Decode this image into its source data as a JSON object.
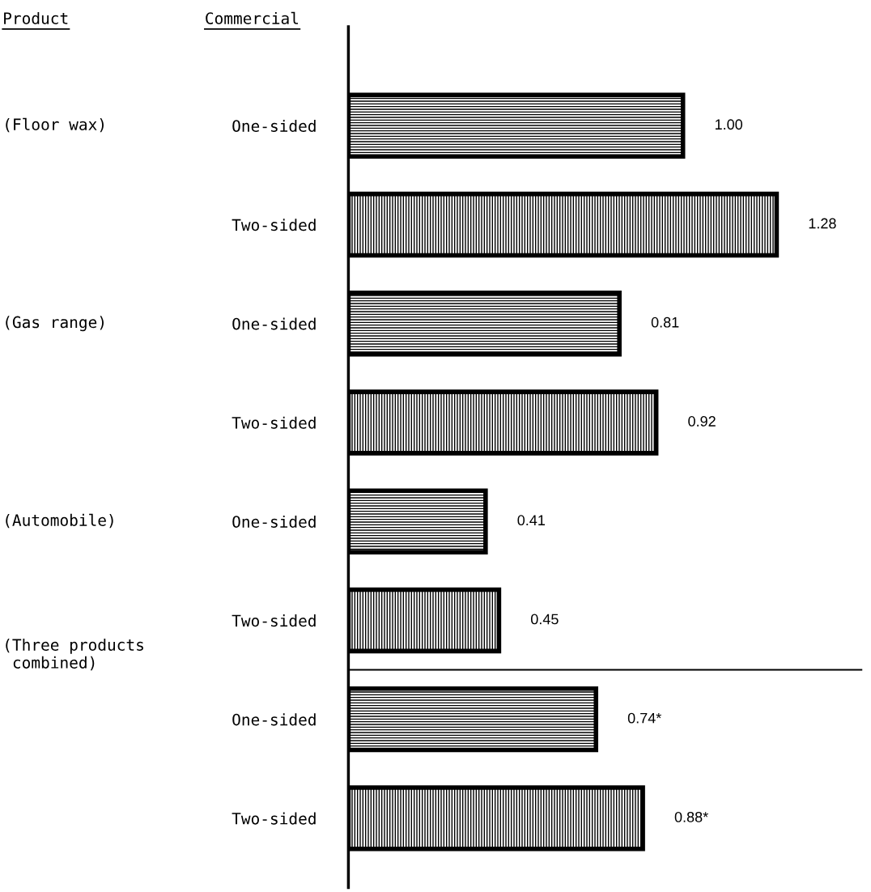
{
  "chart_data": {
    "type": "bar",
    "orientation": "horizontal",
    "tick_labels": "y",
    "grid": false,
    "legend": false,
    "categories": [
      "One-sided",
      "Two-sided",
      "One-sided",
      "Two-sided",
      "One-sided",
      "Two-sided",
      "One-sided",
      "Two-sided"
    ],
    "series": [
      {
        "color": "#000000",
        "values": [
          1.0,
          null,
          0.81,
          null,
          0.41,
          null,
          0.74,
          null
        ],
        "value_labels": [
          "1.00",
          null,
          "0.81",
          null,
          "0.41",
          null,
          "0.74*",
          null
        ]
      },
      {
        "color": "#000000",
        "values": [
          null,
          1.28,
          null,
          0.92,
          null,
          0.45,
          null,
          0.88
        ],
        "value_labels": [
          null,
          "1.28",
          null,
          "0.92",
          null,
          "0.45",
          null,
          "0.88*"
        ]
      }
    ],
    "annotations": [
      "Product",
      "Commercial",
      "(Floor wax)",
      "(Gas range)",
      "(Automobile)",
      "(Three products\n combined)"
    ]
  }
}
